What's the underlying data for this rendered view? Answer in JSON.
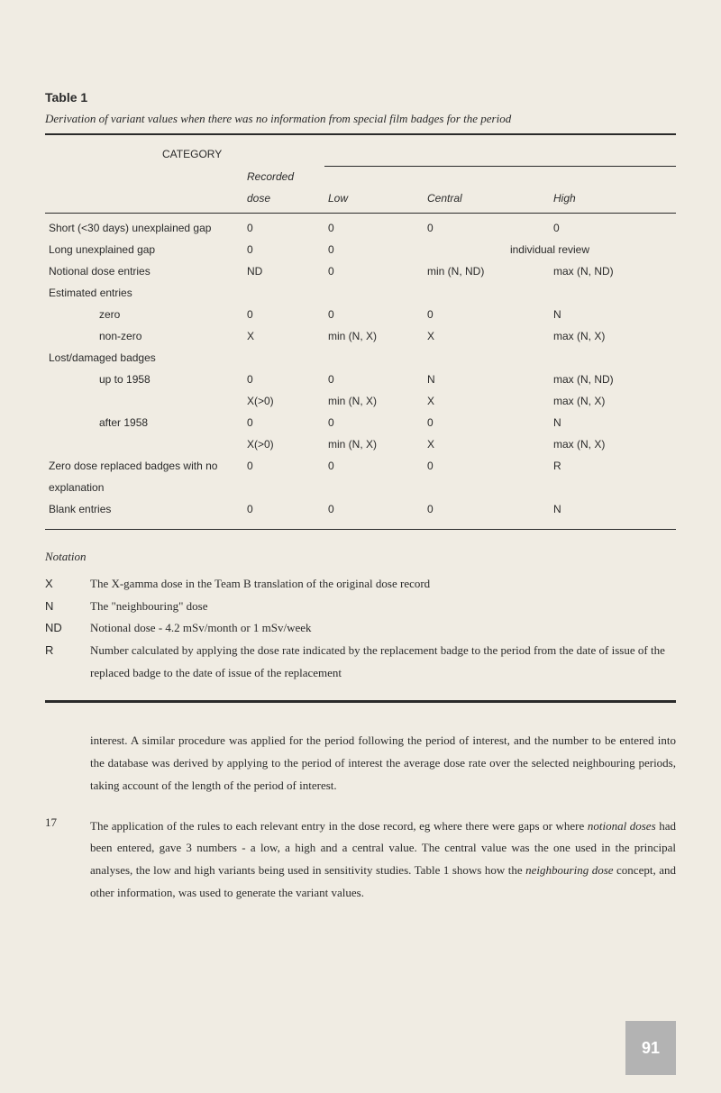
{
  "table": {
    "label": "Table 1",
    "caption": "Derivation of variant values when there was no information from special film badges for the period",
    "category_header": "CATEGORY",
    "columns": {
      "recorded": "Recorded",
      "dose": "dose",
      "low": "Low",
      "central": "Central",
      "high": "High"
    },
    "rows": [
      {
        "cat": "Short (<30 days) unexplained gap",
        "rec": "0",
        "low": "0",
        "cent": "0",
        "high": "0",
        "indent": 0
      },
      {
        "cat": "Long unexplained gap",
        "rec": "0",
        "low": "0",
        "cent": "individual review",
        "high": "",
        "indent": 0,
        "span_cent": true
      },
      {
        "cat": "Notional dose entries",
        "rec": "ND",
        "low": "0",
        "cent": "min (N, ND)",
        "high": "max (N, ND)",
        "indent": 0
      },
      {
        "cat": "Estimated entries",
        "rec": "",
        "low": "",
        "cent": "",
        "high": "",
        "indent": 0
      },
      {
        "cat": "zero",
        "rec": "0",
        "low": "0",
        "cent": "0",
        "high": "N",
        "indent": 1
      },
      {
        "cat": "non-zero",
        "rec": "X",
        "low": "min (N, X)",
        "cent": "X",
        "high": "max (N, X)",
        "indent": 1
      },
      {
        "cat": "Lost/damaged badges",
        "rec": "",
        "low": "",
        "cent": "",
        "high": "",
        "indent": 0
      },
      {
        "cat": "up to 1958",
        "rec": "0",
        "low": "0",
        "cent": "N",
        "high": "max (N, ND)",
        "indent": 1
      },
      {
        "cat": "",
        "rec": "X(>0)",
        "low": "min (N, X)",
        "cent": "X",
        "high": "max (N, X)",
        "indent": 1
      },
      {
        "cat": "after 1958",
        "rec": "0",
        "low": "0",
        "cent": "0",
        "high": "N",
        "indent": 1
      },
      {
        "cat": "",
        "rec": "X(>0)",
        "low": "min (N, X)",
        "cent": "X",
        "high": "max (N, X)",
        "indent": 1
      },
      {
        "cat": "Zero dose replaced badges with no",
        "rec": "0",
        "low": "0",
        "cent": "0",
        "high": "R",
        "indent": 0
      },
      {
        "cat": "explanation",
        "rec": "",
        "low": "",
        "cent": "",
        "high": "",
        "indent": 0
      },
      {
        "cat": "Blank entries",
        "rec": "0",
        "low": "0",
        "cent": "0",
        "high": "N",
        "indent": 0
      }
    ]
  },
  "notation": {
    "title": "Notation",
    "items": [
      {
        "sym": "X",
        "txt": "The X-gamma dose in the Team B translation of the original dose record"
      },
      {
        "sym": "N",
        "txt": "The \"neighbouring\" dose"
      },
      {
        "sym": "ND",
        "txt": "Notional dose - 4.2 mSv/month or 1 mSv/week"
      },
      {
        "sym": "R",
        "txt": "Number calculated by applying the dose rate indicated by the replacement badge to the period from the date of issue of the replaced badge to the date of issue of the replacement"
      }
    ]
  },
  "paragraphs": [
    {
      "num": "",
      "html": "interest. A similar procedure was applied for the period following the period of interest, and the number to be entered into the database was derived by applying to the period of interest the average dose rate over the selected neighbouring periods, taking account of the length of the period of interest."
    },
    {
      "num": "17",
      "html": "The application of the rules to each relevant entry in the dose record, eg where there were gaps or where <i>notional doses</i> had been entered, gave 3 numbers - a low, a high and a central value. The central value was the one used in the principal analyses, the low and high variants being used in sensitivity studies. Table 1 shows how the <i>neighbouring dose</i> concept, and other information, was used to generate the variant values."
    }
  ],
  "page_number": "91",
  "colors": {
    "background": "#f0ece3",
    "text": "#2a2a2a",
    "pagenum_bg": "#b3b3b3",
    "pagenum_fg": "#ffffff"
  }
}
